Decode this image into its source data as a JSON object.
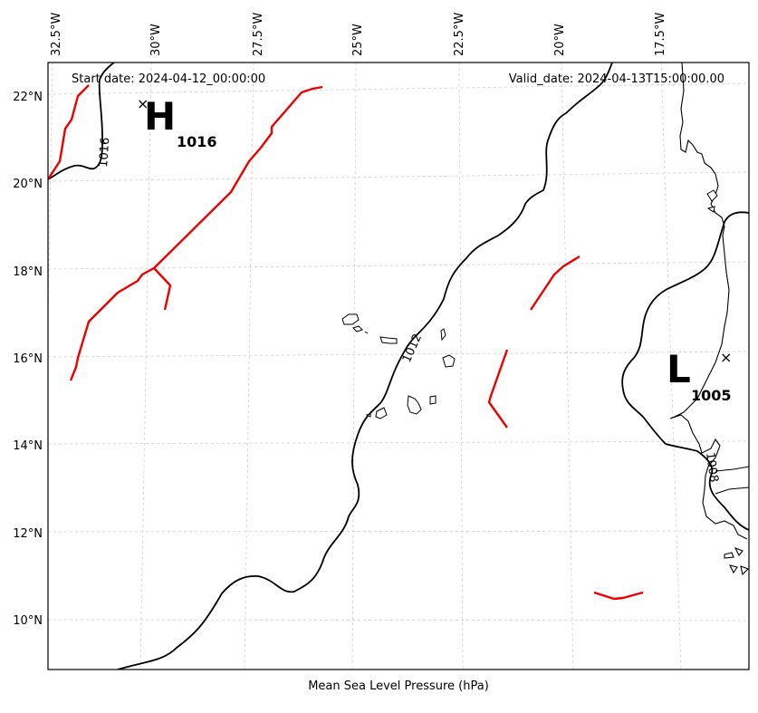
{
  "map": {
    "header_left": "Start date: 2024-04-12_00:00:00",
    "header_right": "Valid_date: 2024-04-13T15:00:00.00",
    "caption": "Mean Sea Level Pressure (hPa)",
    "lon_ticks": [
      {
        "lon": -32.5,
        "label": "32.5°W"
      },
      {
        "lon": -30.0,
        "label": "30°W"
      },
      {
        "lon": -27.5,
        "label": "27.5°W"
      },
      {
        "lon": -25.0,
        "label": "25°W"
      },
      {
        "lon": -22.5,
        "label": "22.5°W"
      },
      {
        "lon": -20.0,
        "label": "20°W"
      },
      {
        "lon": -17.5,
        "label": "17.5°W"
      }
    ],
    "lat_ticks": [
      {
        "lat": 22,
        "label": "22°N"
      },
      {
        "lat": 20,
        "label": "20°N"
      },
      {
        "lat": 18,
        "label": "18°N"
      },
      {
        "lat": 16,
        "label": "16°N"
      },
      {
        "lat": 14,
        "label": "14°N"
      },
      {
        "lat": 12,
        "label": "12°N"
      },
      {
        "lat": 10,
        "label": "10°N"
      }
    ],
    "contour_labels": [
      "1016",
      "1012",
      "1008"
    ],
    "high": {
      "letter": "H",
      "value": "1016",
      "marker": "×"
    },
    "low": {
      "letter": "L",
      "value": "1005",
      "marker": "×"
    },
    "colors": {
      "isobar": "#000000",
      "front": "#ee0000",
      "grid": "#cccccc",
      "coast": "#000000"
    }
  }
}
